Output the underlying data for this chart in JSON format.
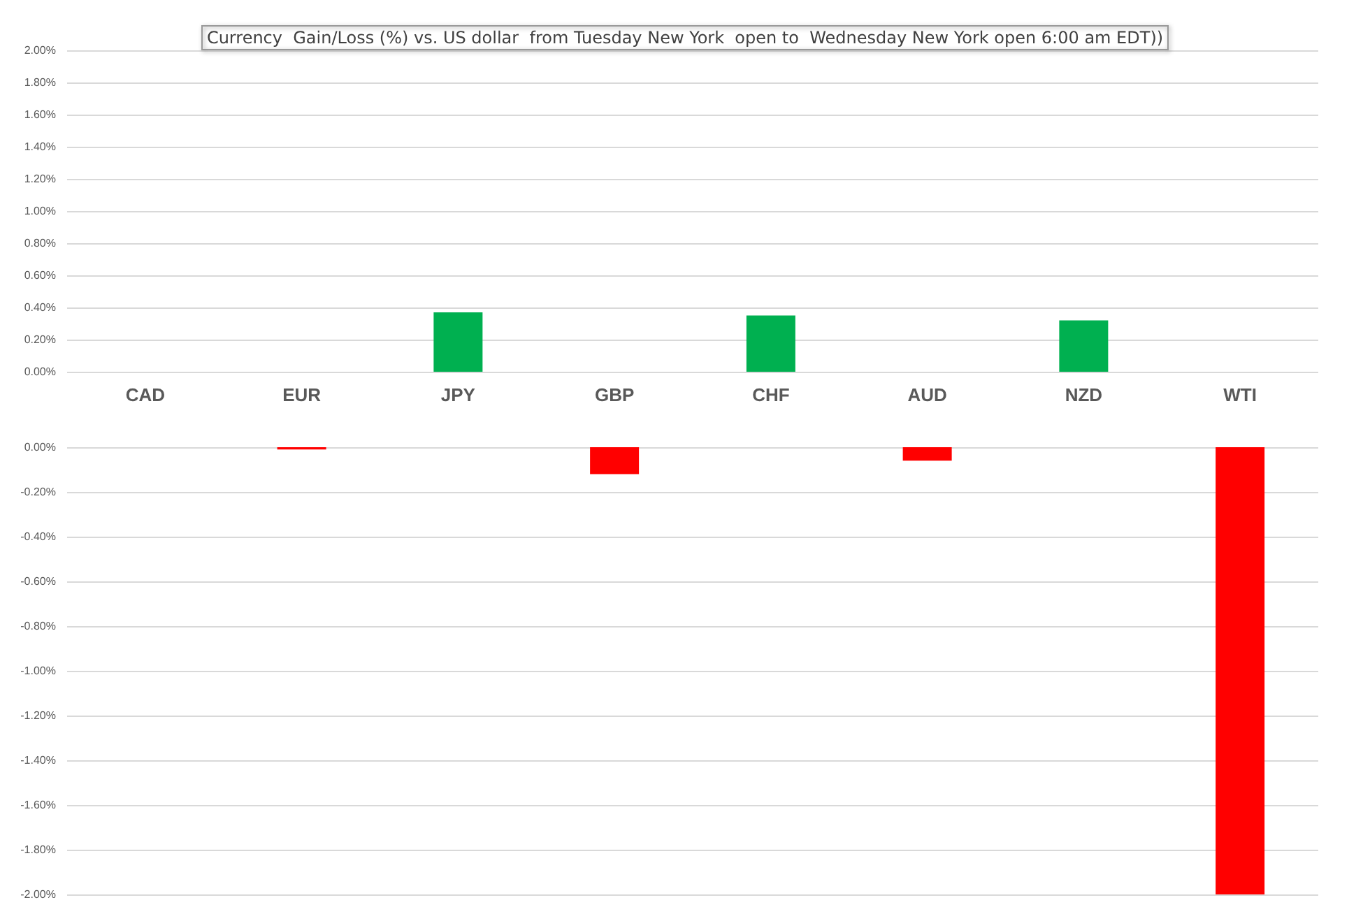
{
  "chart_data": [
    {
      "type": "bar",
      "title": "Currency  Gain/Loss (%) vs. US dollar  from Tuesday New York  open to  Wednesday New York open 6:00 am EDT))",
      "categories": [
        "CAD",
        "EUR",
        "JPY",
        "GBP",
        "CHF",
        "AUD",
        "NZD",
        "WTI"
      ],
      "series": [
        {
          "color": "#00b050",
          "values": [
            null,
            null,
            0.37,
            null,
            0.35,
            null,
            0.32,
            null
          ]
        }
      ],
      "ylim": [
        0,
        2
      ],
      "yticks": [
        {
          "value": 0,
          "label": "0.00%"
        },
        {
          "value": 0.2,
          "label": "0.20%"
        },
        {
          "value": 0.4,
          "label": "0.40%"
        },
        {
          "value": 0.6,
          "label": "0.60%"
        },
        {
          "value": 0.8,
          "label": "0.80%"
        },
        {
          "value": 1,
          "label": "1.00%"
        },
        {
          "value": 1.2,
          "label": "1.20%"
        },
        {
          "value": 1.4,
          "label": "1.40%"
        },
        {
          "value": 1.6,
          "label": "1.60%"
        },
        {
          "value": 1.8,
          "label": "1.80%"
        },
        {
          "value": 2,
          "label": "2.00%"
        }
      ],
      "grid": "y"
    },
    {
      "type": "bar",
      "categories": [
        null,
        null,
        null,
        null,
        null,
        null,
        null,
        null
      ],
      "series": [
        {
          "color": "#ff0000",
          "values": [
            null,
            -0.01,
            null,
            -0.12,
            null,
            -0.06,
            null,
            -2
          ]
        }
      ],
      "ylim": [
        -2,
        0
      ],
      "yticks": [
        {
          "value": -2,
          "label": "-2.00%"
        },
        {
          "value": -1.8,
          "label": "-1.80%"
        },
        {
          "value": -1.6,
          "label": "-1.60%"
        },
        {
          "value": -1.4,
          "label": "-1.40%"
        },
        {
          "value": -1.2,
          "label": "-1.20%"
        },
        {
          "value": -1,
          "label": "-1.00%"
        },
        {
          "value": -0.8,
          "label": "-0.80%"
        },
        {
          "value": -0.6,
          "label": "-0.60%"
        },
        {
          "value": -0.4,
          "label": "-0.40%"
        },
        {
          "value": -0.2,
          "label": "-0.20%"
        },
        {
          "value": 0,
          "label": "0.00%"
        }
      ],
      "grid": "y",
      "tick_labels": "y"
    }
  ]
}
